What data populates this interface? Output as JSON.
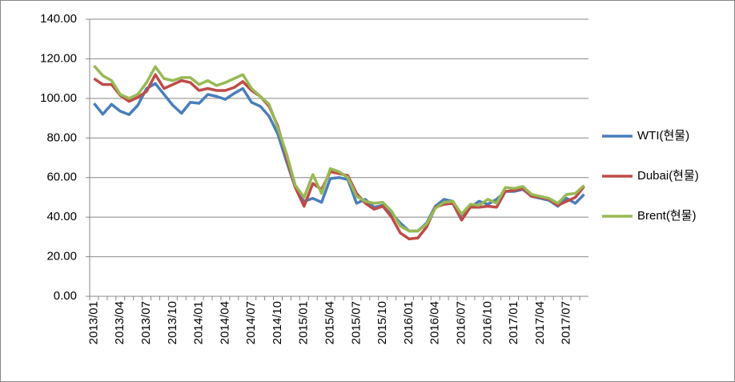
{
  "chart_data": {
    "type": "line",
    "categories": [
      "2013/01",
      null,
      null,
      "2013/04",
      null,
      null,
      "2013/07",
      null,
      null,
      "2013/10",
      null,
      null,
      "2014/01",
      null,
      null,
      "2014/04",
      null,
      null,
      "2014/07",
      null,
      null,
      "2014/10",
      null,
      null,
      "2015/01",
      null,
      null,
      "2015/04",
      null,
      null,
      "2015/07",
      null,
      null,
      "2015/10",
      null,
      null,
      "2016/01",
      null,
      null,
      "2016/04",
      null,
      null,
      "2016/07",
      null,
      null,
      "2016/10",
      null,
      null,
      "2017/01",
      null,
      null,
      "2017/04",
      null,
      null,
      "2017/07",
      null,
      null
    ],
    "series": [
      {
        "name": "WTI(현물)",
        "color": "#4a7ebb",
        "values": [
          97.5,
          92,
          97,
          93.5,
          91.8,
          96.5,
          105,
          107.5,
          102,
          96.5,
          92.5,
          98,
          97.5,
          102,
          101,
          99.5,
          102.5,
          105,
          98,
          96,
          91,
          82,
          68,
          55,
          48,
          49.5,
          47.5,
          59.5,
          60,
          59,
          47,
          49,
          45,
          46,
          42,
          37,
          33,
          33,
          37,
          45.5,
          49,
          48,
          41,
          45,
          48,
          46.5,
          49,
          53,
          53,
          54,
          50.5,
          49.5,
          48.5,
          45.5,
          49.5,
          47,
          51.5
        ]
      },
      {
        "name": "Dubai(현물)",
        "color": "#be4b48",
        "values": [
          110,
          107,
          107,
          101.5,
          98.5,
          100.5,
          103.5,
          112,
          105,
          107,
          109,
          108,
          104,
          105,
          104,
          104,
          105.5,
          108.5,
          104,
          101,
          96,
          86,
          70,
          55,
          45.5,
          57,
          54,
          63,
          62,
          61,
          52,
          47,
          44,
          45.5,
          40,
          32,
          29,
          29.5,
          35,
          45,
          46.5,
          47,
          38.5,
          45,
          45,
          45.5,
          45,
          53,
          53.5,
          54.5,
          50.5,
          50,
          49,
          46,
          48,
          50,
          55.5
        ]
      },
      {
        "name": "Brent(현물)",
        "color": "#98b954",
        "values": [
          116.5,
          111.5,
          109,
          102,
          100,
          102,
          108,
          116,
          110,
          109,
          110.5,
          110.5,
          107,
          109,
          106.5,
          108,
          110,
          112,
          105,
          101,
          97,
          85,
          72,
          56,
          50,
          61.5,
          52,
          64.5,
          63,
          60,
          50.5,
          48,
          47,
          47.5,
          43,
          35.5,
          33,
          33,
          36.5,
          44.5,
          47.5,
          48,
          41.5,
          46.5,
          46,
          49,
          47,
          55,
          54.5,
          55.5,
          51.5,
          50.5,
          49.5,
          47,
          51.5,
          52,
          56
        ]
      }
    ],
    "ylim": [
      0,
      140
    ],
    "yticks": [
      {
        "value": 0,
        "label": "0.00"
      },
      {
        "value": 20,
        "label": "20.00"
      },
      {
        "value": 40,
        "label": "40.00"
      },
      {
        "value": 60,
        "label": "60.00"
      },
      {
        "value": 80,
        "label": "80.00"
      },
      {
        "value": 100,
        "label": "100.00"
      },
      {
        "value": 120,
        "label": "120.00"
      },
      {
        "value": 140,
        "label": "140.00"
      }
    ],
    "grid": true,
    "legend": "right"
  }
}
